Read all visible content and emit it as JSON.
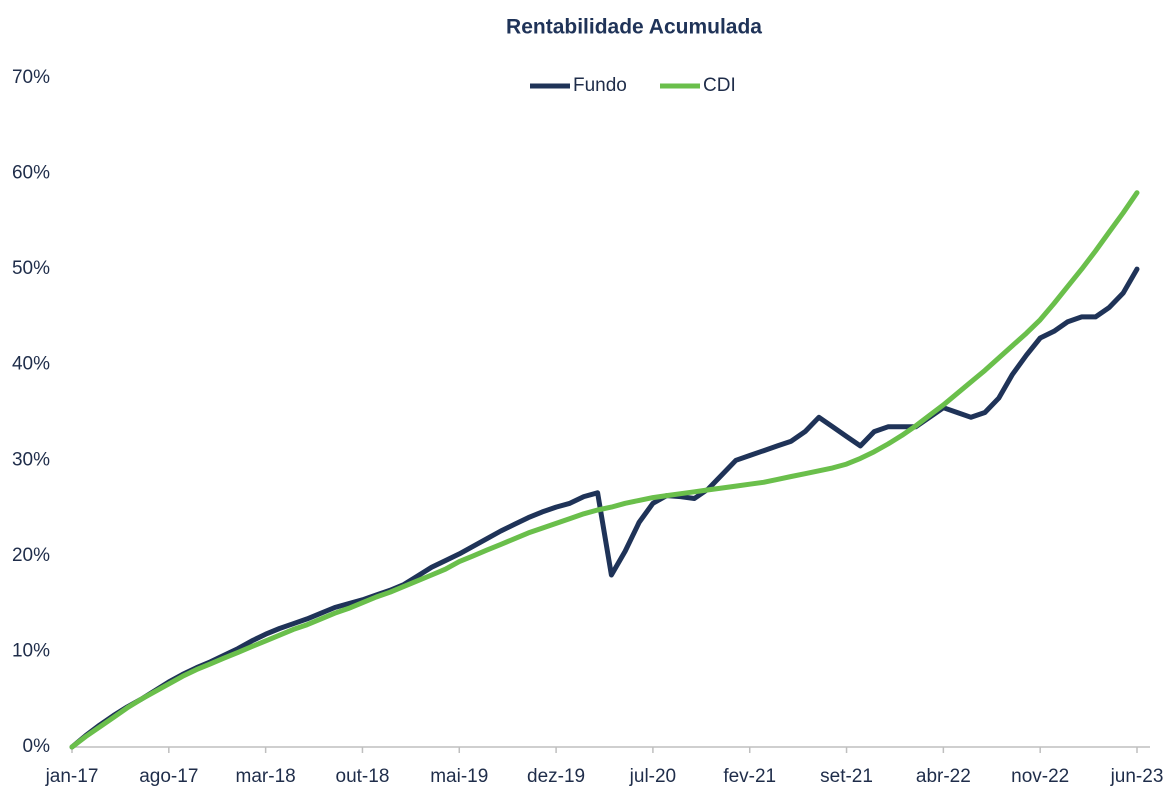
{
  "chart_data": {
    "type": "line",
    "title": "Rentabilidade Acumulada",
    "categories": [
      "jan-17",
      null,
      null,
      null,
      null,
      null,
      null,
      "ago-17",
      null,
      null,
      null,
      null,
      null,
      null,
      "mar-18",
      null,
      null,
      null,
      null,
      null,
      null,
      "out-18",
      null,
      null,
      null,
      null,
      null,
      null,
      "mai-19",
      null,
      null,
      null,
      null,
      null,
      null,
      "dez-19",
      null,
      null,
      null,
      null,
      null,
      null,
      "jul-20",
      null,
      null,
      null,
      null,
      null,
      null,
      "fev-21",
      null,
      null,
      null,
      null,
      null,
      null,
      "set-21",
      null,
      null,
      null,
      null,
      null,
      null,
      "abr-22",
      null,
      null,
      null,
      null,
      null,
      null,
      "nov-22",
      null,
      null,
      null,
      null,
      null,
      null,
      "jun-23"
    ],
    "series": [
      {
        "name": "Fundo",
        "color": "#1f3358",
        "values": [
          0,
          1.2,
          2.3,
          3.3,
          4.2,
          5.0,
          5.9,
          6.8,
          7.6,
          8.3,
          8.9,
          9.6,
          10.3,
          11.1,
          11.8,
          12.4,
          12.9,
          13.4,
          14.0,
          14.6,
          15.0,
          15.4,
          15.9,
          16.4,
          17.0,
          17.9,
          18.8,
          19.5,
          20.2,
          21.0,
          21.8,
          22.6,
          23.3,
          24.0,
          24.6,
          25.1,
          25.5,
          26.2,
          26.6,
          18.0,
          20.5,
          23.5,
          25.5,
          26.3,
          26.2,
          26.0,
          27.0,
          28.5,
          30.0,
          30.5,
          31.0,
          31.5,
          32.0,
          33.0,
          34.5,
          33.5,
          32.5,
          31.5,
          33.0,
          33.5,
          33.5,
          33.5,
          34.5,
          35.5,
          35.0,
          34.5,
          35.0,
          36.5,
          39.0,
          41.0,
          42.8,
          43.5,
          44.5,
          45.0,
          45.0,
          46.0,
          47.5,
          50.0
        ]
      },
      {
        "name": "CDI",
        "color": "#6abf4b",
        "values": [
          0,
          1.1,
          2.1,
          3.1,
          4.1,
          5.0,
          5.8,
          6.6,
          7.4,
          8.1,
          8.7,
          9.3,
          9.9,
          10.5,
          11.1,
          11.7,
          12.3,
          12.8,
          13.4,
          14.0,
          14.5,
          15.1,
          15.7,
          16.2,
          16.8,
          17.4,
          18.0,
          18.6,
          19.4,
          20.0,
          20.6,
          21.2,
          21.8,
          22.4,
          22.9,
          23.4,
          23.9,
          24.4,
          24.8,
          25.1,
          25.5,
          25.8,
          26.1,
          26.3,
          26.5,
          26.7,
          26.9,
          27.1,
          27.3,
          27.5,
          27.7,
          28.0,
          28.3,
          28.6,
          28.9,
          29.2,
          29.6,
          30.2,
          30.9,
          31.7,
          32.6,
          33.6,
          34.7,
          35.8,
          37.0,
          38.2,
          39.4,
          40.7,
          42.0,
          43.3,
          44.7,
          46.4,
          48.2,
          50.0,
          51.9,
          53.9,
          55.9,
          58.0
        ]
      }
    ],
    "ylim": [
      0,
      70
    ],
    "yticks": [
      {
        "value": 0,
        "label": "0%"
      },
      {
        "value": 10,
        "label": "10%"
      },
      {
        "value": 20,
        "label": "20%"
      },
      {
        "value": 30,
        "label": "30%"
      },
      {
        "value": 40,
        "label": "40%"
      },
      {
        "value": 50,
        "label": "50%"
      },
      {
        "value": 60,
        "label": "60%"
      },
      {
        "value": 70,
        "label": "70%"
      }
    ],
    "grid": false,
    "legend": "top"
  }
}
